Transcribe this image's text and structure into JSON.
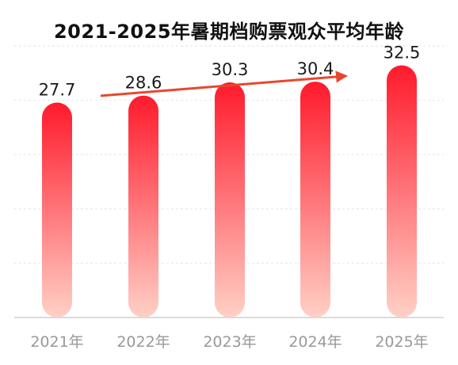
{
  "chart_data": {
    "type": "bar",
    "title": "2021-2025年暑期档购票观众平均年龄",
    "categories": [
      "2021年",
      "2022年",
      "2023年",
      "2024年",
      "2025年"
    ],
    "values": [
      27.7,
      28.6,
      30.3,
      30.4,
      32.5
    ],
    "data_labels": [
      "27.7",
      "28.6",
      "30.3",
      "30.4",
      "32.5"
    ],
    "xlabel": "",
    "ylabel": "",
    "ylim": [
      0,
      35
    ],
    "grid": true,
    "trend_arrow": true,
    "colors": {
      "bar_top": "#ff1a2c",
      "bar_bottom": "#ffd0c6",
      "arrow": "#e8472e",
      "label": "#1a1a1a",
      "tick": "#999999",
      "grid": "#e6e6e6"
    }
  }
}
